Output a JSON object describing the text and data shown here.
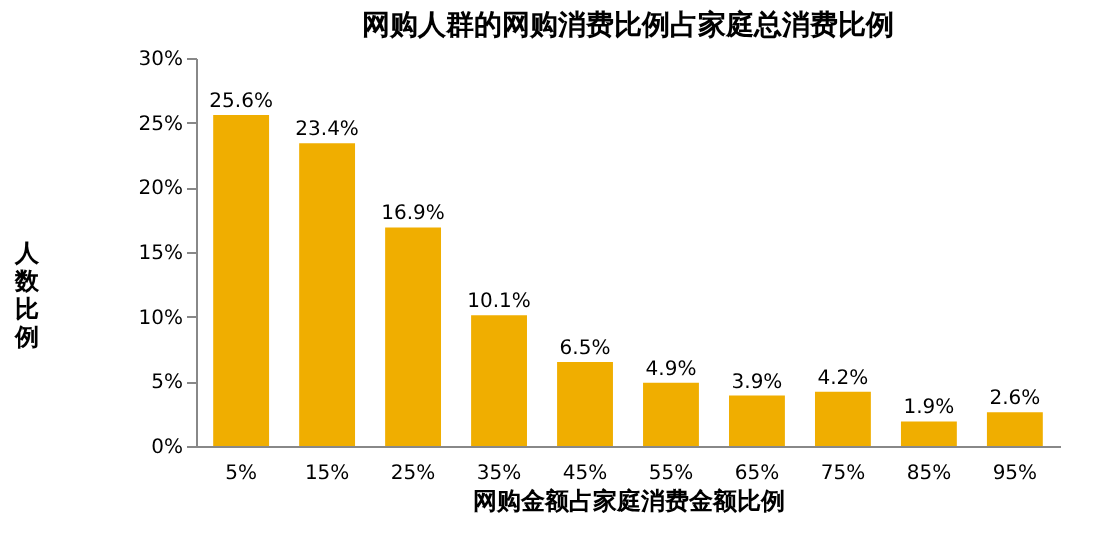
{
  "chart_data": {
    "type": "bar",
    "title": "网购人群的网购消费比例占家庭总消费比例",
    "xlabel": "网购金额占家庭消费金额比例",
    "ylabel": "人数比例",
    "categories": [
      "5%",
      "15%",
      "25%",
      "35%",
      "45%",
      "55%",
      "65%",
      "75%",
      "85%",
      "95%"
    ],
    "values": [
      25.6,
      23.4,
      16.9,
      10.1,
      6.5,
      4.9,
      3.9,
      4.2,
      1.9,
      2.6
    ],
    "value_labels": [
      "25.6%",
      "23.4%",
      "16.9%",
      "10.1%",
      "6.5%",
      "4.9%",
      "3.9%",
      "4.2%",
      "1.9%",
      "2.6%"
    ],
    "color": "#f0ae00",
    "ylim": [
      0,
      30
    ],
    "yticks": [
      {
        "value": 0,
        "label": "0%"
      },
      {
        "value": 5,
        "label": "5%"
      },
      {
        "value": 10,
        "label": "10%"
      },
      {
        "value": 15,
        "label": "15%"
      },
      {
        "value": 20,
        "label": "20%"
      },
      {
        "value": 25,
        "label": "25%"
      },
      {
        "value": 30,
        "label": "30%"
      }
    ],
    "grid": false
  }
}
